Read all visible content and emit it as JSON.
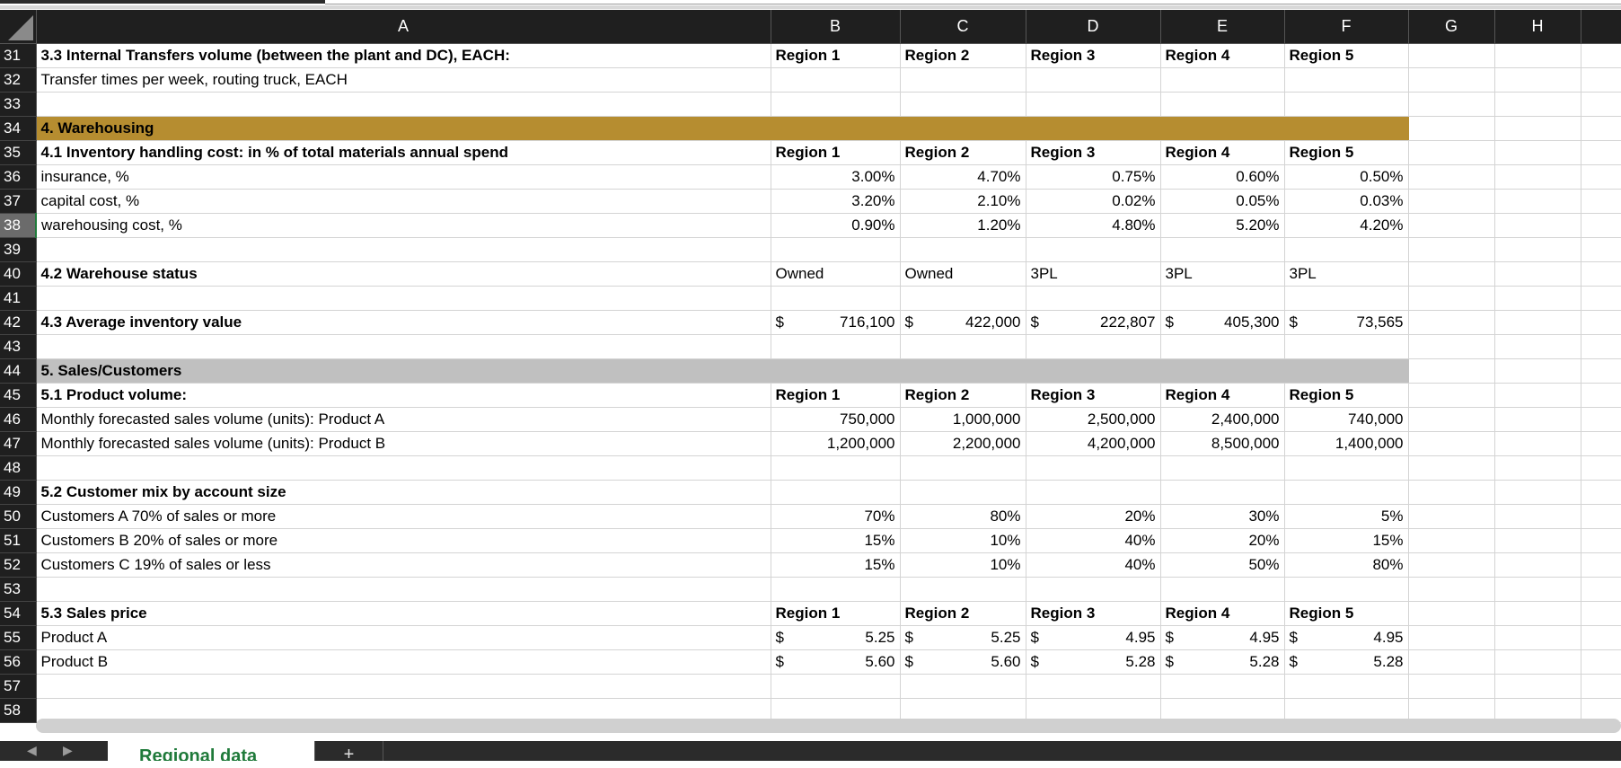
{
  "columns": [
    "A",
    "B",
    "C",
    "D",
    "E",
    "F",
    "G",
    "H"
  ],
  "rows": {
    "r31": {
      "num": "31",
      "a": "3.3  Internal Transfers volume (between the plant and DC), EACH:",
      "b": "Region 1",
      "c": "Region 2",
      "d": "Region 3",
      "e": "Region 4",
      "f": "Region 5"
    },
    "r32": {
      "num": "32",
      "a": "Transfer times per week, routing truck, EACH"
    },
    "r33": {
      "num": "33"
    },
    "r34": {
      "num": "34",
      "a": "4. Warehousing"
    },
    "r35": {
      "num": "35",
      "a": "4.1 Inventory handling cost: in % of total materials annual spend",
      "b": "Region 1",
      "c": "Region 2",
      "d": "Region 3",
      "e": "Region 4",
      "f": "Region 5"
    },
    "r36": {
      "num": "36",
      "a": "insurance, %",
      "b": "3.00%",
      "c": "4.70%",
      "d": "0.75%",
      "e": "0.60%",
      "f": "0.50%"
    },
    "r37": {
      "num": "37",
      "a": "capital cost, %",
      "b": "3.20%",
      "c": "2.10%",
      "d": "0.02%",
      "e": "0.05%",
      "f": "0.03%"
    },
    "r38": {
      "num": "38",
      "a": "warehousing cost, %",
      "b": "0.90%",
      "c": "1.20%",
      "d": "4.80%",
      "e": "5.20%",
      "f": "4.20%"
    },
    "r39": {
      "num": "39"
    },
    "r40": {
      "num": "40",
      "a": "4.2 Warehouse status",
      "b": "Owned",
      "c": "Owned",
      "d": "3PL",
      "e": "3PL",
      "f": "3PL"
    },
    "r41": {
      "num": "41"
    },
    "r42": {
      "num": "42",
      "a": "4.3 Average inventory value",
      "sym": "$",
      "b": "716,100",
      "c": "422,000",
      "d": "222,807",
      "e": "405,300",
      "f": "73,565"
    },
    "r43": {
      "num": "43"
    },
    "r44": {
      "num": "44",
      "a": "5. Sales/Customers"
    },
    "r45": {
      "num": "45",
      "a": "5.1 Product  volume:",
      "b": "Region 1",
      "c": "Region 2",
      "d": "Region 3",
      "e": "Region 4",
      "f": "Region 5"
    },
    "r46": {
      "num": "46",
      "a": "Monthly forecasted sales volume (units): Product A",
      "b": "750,000",
      "c": "1,000,000",
      "d": "2,500,000",
      "e": "2,400,000",
      "f": "740,000"
    },
    "r47": {
      "num": "47",
      "a": "Monthly forecasted sales volume (units): Product B",
      "b": "1,200,000",
      "c": "2,200,000",
      "d": "4,200,000",
      "e": "8,500,000",
      "f": "1,400,000"
    },
    "r48": {
      "num": "48"
    },
    "r49": {
      "num": "49",
      "a": "5.2 Customer mix by account size"
    },
    "r50": {
      "num": "50",
      "a": "Customers A 70% of sales or more",
      "b": "70%",
      "c": "80%",
      "d": "20%",
      "e": "30%",
      "f": "5%"
    },
    "r51": {
      "num": "51",
      "a": "Customers B 20% of sales or more",
      "b": "15%",
      "c": "10%",
      "d": "40%",
      "e": "20%",
      "f": "15%"
    },
    "r52": {
      "num": "52",
      "a": "Customers C 19% of sales or less",
      "b": "15%",
      "c": "10%",
      "d": "40%",
      "e": "50%",
      "f": "80%"
    },
    "r53": {
      "num": "53"
    },
    "r54": {
      "num": "54",
      "a": "5.3 Sales price",
      "b": "Region 1",
      "c": "Region 2",
      "d": "Region 3",
      "e": "Region 4",
      "f": "Region 5"
    },
    "r55": {
      "num": "55",
      "a": "Product A",
      "sym": "$",
      "b": "5.25",
      "c": "5.25",
      "d": "4.95",
      "e": "4.95",
      "f": "4.95"
    },
    "r56": {
      "num": "56",
      "a": "Product B",
      "sym": "$",
      "b": "5.60",
      "c": "5.60",
      "d": "5.28",
      "e": "5.28",
      "f": "5.28"
    },
    "r57": {
      "num": "57"
    },
    "r58": {
      "num": "58"
    }
  },
  "tabs": {
    "sheet_label": "Regional data",
    "add_label": "+",
    "prev": "◀",
    "next": "▶"
  },
  "colors": {
    "header_bg": "#1f1f1f",
    "section_gold": "#b68d30",
    "section_gray": "#c0c0c0",
    "active_tab": "#1f7a3a"
  }
}
